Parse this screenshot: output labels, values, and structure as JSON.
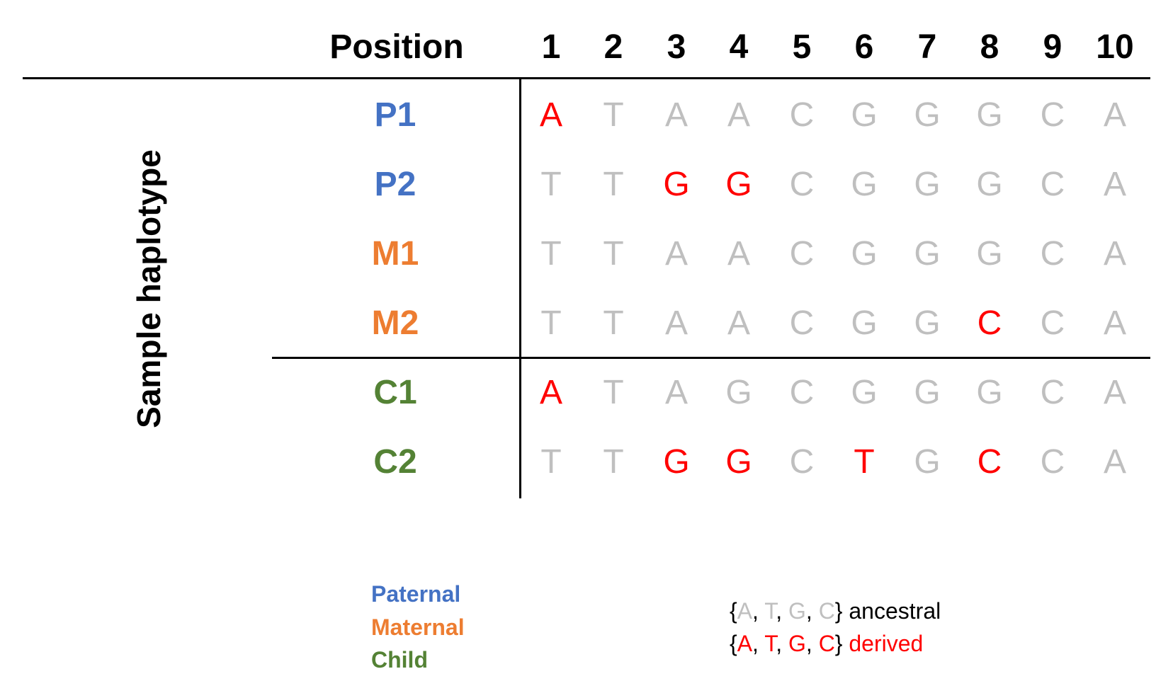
{
  "header": {
    "position_label": "Position",
    "positions": [
      "1",
      "2",
      "3",
      "4",
      "5",
      "6",
      "7",
      "8",
      "9",
      "10"
    ]
  },
  "y_axis_title": "Sample haplotype",
  "colors": {
    "paternal": "#4472C4",
    "maternal": "#ED7D31",
    "child": "#548235",
    "ancestral": "#BFBFBF",
    "derived": "#FF0000",
    "text": "#000000"
  },
  "rows": [
    {
      "label": "P1",
      "group": "paternal",
      "bases": [
        {
          "b": "A",
          "state": "derived"
        },
        {
          "b": "T",
          "state": "ancestral"
        },
        {
          "b": "A",
          "state": "ancestral"
        },
        {
          "b": "A",
          "state": "ancestral"
        },
        {
          "b": "C",
          "state": "ancestral"
        },
        {
          "b": "G",
          "state": "ancestral"
        },
        {
          "b": "G",
          "state": "ancestral"
        },
        {
          "b": "G",
          "state": "ancestral"
        },
        {
          "b": "C",
          "state": "ancestral"
        },
        {
          "b": "A",
          "state": "ancestral"
        }
      ]
    },
    {
      "label": "P2",
      "group": "paternal",
      "bases": [
        {
          "b": "T",
          "state": "ancestral"
        },
        {
          "b": "T",
          "state": "ancestral"
        },
        {
          "b": "G",
          "state": "derived"
        },
        {
          "b": "G",
          "state": "derived"
        },
        {
          "b": "C",
          "state": "ancestral"
        },
        {
          "b": "G",
          "state": "ancestral"
        },
        {
          "b": "G",
          "state": "ancestral"
        },
        {
          "b": "G",
          "state": "ancestral"
        },
        {
          "b": "C",
          "state": "ancestral"
        },
        {
          "b": "A",
          "state": "ancestral"
        }
      ]
    },
    {
      "label": "M1",
      "group": "maternal",
      "bases": [
        {
          "b": "T",
          "state": "ancestral"
        },
        {
          "b": "T",
          "state": "ancestral"
        },
        {
          "b": "A",
          "state": "ancestral"
        },
        {
          "b": "A",
          "state": "ancestral"
        },
        {
          "b": "C",
          "state": "ancestral"
        },
        {
          "b": "G",
          "state": "ancestral"
        },
        {
          "b": "G",
          "state": "ancestral"
        },
        {
          "b": "G",
          "state": "ancestral"
        },
        {
          "b": "C",
          "state": "ancestral"
        },
        {
          "b": "A",
          "state": "ancestral"
        }
      ]
    },
    {
      "label": "M2",
      "group": "maternal",
      "bases": [
        {
          "b": "T",
          "state": "ancestral"
        },
        {
          "b": "T",
          "state": "ancestral"
        },
        {
          "b": "A",
          "state": "ancestral"
        },
        {
          "b": "A",
          "state": "ancestral"
        },
        {
          "b": "C",
          "state": "ancestral"
        },
        {
          "b": "G",
          "state": "ancestral"
        },
        {
          "b": "G",
          "state": "ancestral"
        },
        {
          "b": "C",
          "state": "derived"
        },
        {
          "b": "C",
          "state": "ancestral"
        },
        {
          "b": "A",
          "state": "ancestral"
        }
      ]
    },
    {
      "label": "C1",
      "group": "child",
      "bases": [
        {
          "b": "A",
          "state": "derived"
        },
        {
          "b": "T",
          "state": "ancestral"
        },
        {
          "b": "A",
          "state": "ancestral"
        },
        {
          "b": "G",
          "state": "ancestral"
        },
        {
          "b": "C",
          "state": "ancestral"
        },
        {
          "b": "G",
          "state": "ancestral"
        },
        {
          "b": "G",
          "state": "ancestral"
        },
        {
          "b": "G",
          "state": "ancestral"
        },
        {
          "b": "C",
          "state": "ancestral"
        },
        {
          "b": "A",
          "state": "ancestral"
        }
      ]
    },
    {
      "label": "C2",
      "group": "child",
      "bases": [
        {
          "b": "T",
          "state": "ancestral"
        },
        {
          "b": "T",
          "state": "ancestral"
        },
        {
          "b": "G",
          "state": "derived"
        },
        {
          "b": "G",
          "state": "derived"
        },
        {
          "b": "C",
          "state": "ancestral"
        },
        {
          "b": "T",
          "state": "derived"
        },
        {
          "b": "G",
          "state": "ancestral"
        },
        {
          "b": "C",
          "state": "derived"
        },
        {
          "b": "C",
          "state": "ancestral"
        },
        {
          "b": "A",
          "state": "ancestral"
        }
      ]
    }
  ],
  "legend": {
    "paternal": "Paternal",
    "maternal": "Maternal",
    "child": "Child"
  },
  "key": {
    "open": "{",
    "close": "}",
    "sep": ", ",
    "bases": [
      "A",
      "T",
      "G",
      "C"
    ],
    "ancestral_label": " ancestral",
    "derived_label": " derived"
  }
}
